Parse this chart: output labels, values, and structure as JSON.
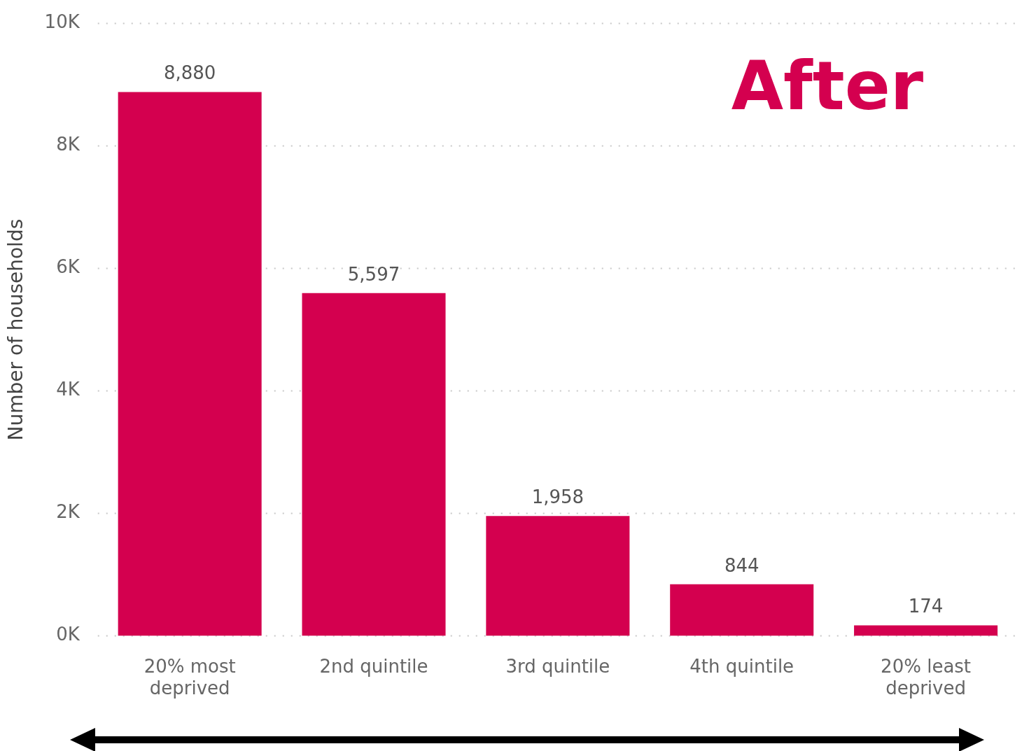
{
  "chart_data": {
    "type": "bar",
    "title": "After",
    "ylabel": "Number of households",
    "categories": [
      "20% most deprived",
      "2nd quintile",
      "3rd quintile",
      "4th quintile",
      "20% least deprived"
    ],
    "values": [
      8880,
      5597,
      1958,
      844,
      174
    ],
    "color": "#d4004f",
    "ylim": [
      0,
      10000
    ],
    "yticks": [
      {
        "value": 0,
        "label": "0K"
      },
      {
        "value": 2000,
        "label": "2K"
      },
      {
        "value": 4000,
        "label": "4K"
      },
      {
        "value": 6000,
        "label": "6K"
      },
      {
        "value": 8000,
        "label": "8K"
      },
      {
        "value": 10000,
        "label": "10K"
      }
    ],
    "value_labels": [
      "8,880",
      "5,597",
      "1,958",
      "844",
      "174"
    ],
    "grid": "y",
    "legend": false
  }
}
